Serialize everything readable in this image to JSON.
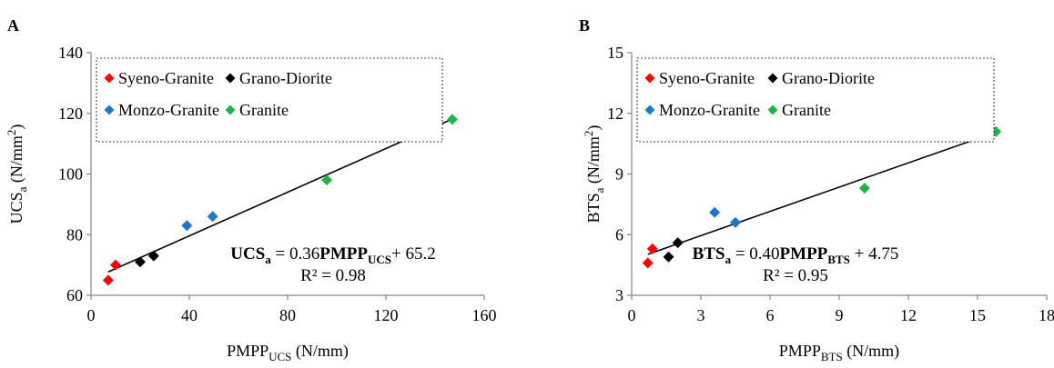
{
  "chart_data": [
    {
      "type": "scatter",
      "panel_label": "A",
      "xlabel": {
        "main": "PMPP",
        "sub": "UCS",
        "unit": " (N/mm)"
      },
      "ylabel": {
        "main": "UCS",
        "sub": "a",
        "unit_pre": " (N/mm",
        "sup": "2",
        "unit_post": ")"
      },
      "xlim": [
        0,
        160
      ],
      "ylim": [
        60,
        140
      ],
      "xticks": [
        "0",
        "40",
        "80",
        "120",
        "160"
      ],
      "yticks": [
        "60",
        "80",
        "100",
        "120",
        "140"
      ],
      "grid": false,
      "legend_position": "top",
      "series": [
        {
          "name": "Syeno-Granite",
          "color": "#ff0000",
          "x": [
            7,
            10
          ],
          "y": [
            65,
            70
          ]
        },
        {
          "name": "Grano-Diorite",
          "color": "#000000",
          "x": [
            20,
            25.5
          ],
          "y": [
            71,
            73
          ]
        },
        {
          "name": "Monzo-Granite",
          "color": "#1f77c9",
          "x": [
            39,
            49.5
          ],
          "y": [
            83,
            86
          ]
        },
        {
          "name": "Granite",
          "color": "#22b14c",
          "x": [
            96,
            147
          ],
          "y": [
            98,
            118
          ]
        }
      ],
      "trendline": {
        "x": [
          7,
          147
        ],
        "slope": 0.36,
        "intercept": 65.2
      },
      "equation": {
        "lhs": "UCS",
        "lhs_sub": "a",
        "mid": " = 0.36",
        "var": "PMPP",
        "var_sub": "UCS",
        "rest": "+ 65.2",
        "r2": "R² = 0.98"
      }
    },
    {
      "type": "scatter",
      "panel_label": "B",
      "xlabel": {
        "main": "PMPP",
        "sub": "BTS",
        "unit": " (N/mm)"
      },
      "ylabel": {
        "main": "BTS",
        "sub": "a",
        "unit_pre": " (N/mm",
        "sup": "2",
        "unit_post": ")"
      },
      "xlim": [
        0,
        18
      ],
      "ylim": [
        3,
        15
      ],
      "xticks": [
        "0",
        "3",
        "6",
        "9",
        "12",
        "15",
        "18"
      ],
      "yticks": [
        "3",
        "6",
        "9",
        "12",
        "15"
      ],
      "grid": false,
      "legend_position": "top",
      "series": [
        {
          "name": "Syeno-Granite",
          "color": "#ff0000",
          "x": [
            0.7,
            0.9
          ],
          "y": [
            4.6,
            5.3
          ]
        },
        {
          "name": "Grano-Diorite",
          "color": "#000000",
          "x": [
            1.6,
            2.0
          ],
          "y": [
            4.9,
            5.6
          ]
        },
        {
          "name": "Monzo-Granite",
          "color": "#1f77c9",
          "x": [
            3.6,
            4.5
          ],
          "y": [
            7.1,
            6.6
          ]
        },
        {
          "name": "Granite",
          "color": "#22b14c",
          "x": [
            10.1,
            15.8
          ],
          "y": [
            8.3,
            11.1
          ]
        }
      ],
      "trendline": {
        "x": [
          0.7,
          15.8
        ],
        "slope": 0.4,
        "intercept": 4.75
      },
      "equation": {
        "lhs": "BTS",
        "lhs_sub": "a",
        "mid": " = 0.40",
        "var": "PMPP",
        "var_sub": "BTS",
        "rest": " + 4.75",
        "r2": "R² = 0.95"
      }
    }
  ]
}
